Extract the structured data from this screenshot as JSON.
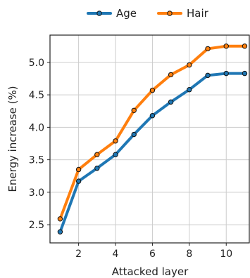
{
  "chart_data": {
    "type": "line",
    "xlabel": "Attacked layer",
    "ylabel": "Energy increase (%)",
    "xlim": [
      0.45,
      11.25
    ],
    "ylim": [
      2.22,
      5.42
    ],
    "xticks": [
      2,
      4,
      6,
      8,
      10
    ],
    "yticks": [
      2.5,
      3.0,
      3.5,
      4.0,
      4.5,
      5.0
    ],
    "xtick_labels": [
      "2",
      "4",
      "6",
      "8",
      "10"
    ],
    "ytick_labels": [
      "2.5",
      "3.0",
      "3.5",
      "4.0",
      "4.5",
      "5.0"
    ],
    "grid": true,
    "legend_position": "top-center",
    "x": [
      1,
      2,
      3,
      4,
      5,
      6,
      7,
      8,
      9,
      10,
      11
    ],
    "series": [
      {
        "name": "Age",
        "color": "#1f77b4",
        "values": [
          2.39,
          3.17,
          3.37,
          3.58,
          3.89,
          4.18,
          4.39,
          4.58,
          4.8,
          4.83,
          4.83
        ]
      },
      {
        "name": "Hair",
        "color": "#ff7f0e",
        "values": [
          2.59,
          3.35,
          3.58,
          3.79,
          4.26,
          4.57,
          4.81,
          4.96,
          5.21,
          5.25,
          5.25
        ]
      }
    ]
  }
}
